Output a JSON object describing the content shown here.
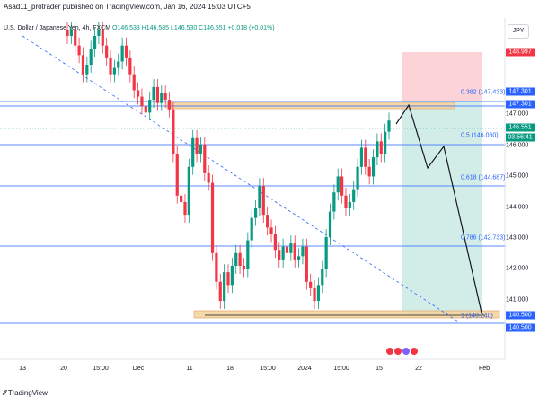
{
  "header": {
    "published": "Asad11_protrader published on TradingView.com, Jan 16, 2024 15:03 UTC+5",
    "symbol": "U.S. Dollar / Japanese Yen, 4h, FXCM",
    "ohlc": "O146.533 H146.585 L146.530 C146.551 +0.018 (+0.01%)",
    "currency": "JPY"
  },
  "price_axis": {
    "ticks": [
      "147.000",
      "146.000",
      "145.000",
      "144.000",
      "143.000",
      "142.000",
      "141.000"
    ],
    "tags": [
      {
        "label": "148.997",
        "color": "#f23645"
      },
      {
        "label": "147.301",
        "color": "#2962ff"
      },
      {
        "label": "147.301",
        "color": "#2962ff"
      },
      {
        "label": "146.551",
        "color": "#089981"
      },
      {
        "label": "03:56:41",
        "color": "#089981"
      },
      {
        "label": "140.500",
        "color": "#2962ff"
      },
      {
        "label": "140.500",
        "color": "#2962ff"
      }
    ]
  },
  "time_axis": [
    "13",
    "20",
    "15:00",
    "Dec",
    "11",
    "18",
    "15:00",
    "2024",
    "15:00",
    "15",
    "22",
    "Feb"
  ],
  "fib_levels": [
    {
      "label": "0.382 (147.433)"
    },
    {
      "label": "0.5 (146.060)"
    },
    {
      "label": "0.618 (144.687)"
    },
    {
      "label": "0.786 (142.733)"
    },
    {
      "label": "1 (140.240)"
    }
  ],
  "footer": {
    "brand": "TradingView"
  },
  "colors": {
    "up": "#089981",
    "down": "#f23645",
    "level": "#2962ff",
    "zone": "#f5d5a0"
  },
  "chart_data": {
    "type": "candlestick",
    "title": "U.S. Dollar / Japanese Yen, 4h, FXCM",
    "ylim": [
      140.2,
      149.2
    ],
    "close": [
      149.2,
      149.4,
      148.9,
      148.6,
      148.0,
      148.3,
      148.8,
      149.2,
      149.4,
      148.9,
      148.5,
      148.0,
      148.2,
      148.4,
      148.9,
      148.5,
      148.0,
      147.5,
      147.3,
      147.0,
      146.8,
      147.2,
      147.6,
      147.1,
      147.4,
      147.2,
      146.9,
      145.5,
      144.2,
      144.0,
      143.6,
      145.1,
      146.0,
      145.5,
      145.8,
      144.9,
      144.6,
      142.4,
      141.5,
      140.9,
      141.8,
      141.4,
      142.0,
      142.4,
      142.0,
      141.9,
      142.8,
      143.5,
      143.8,
      144.5,
      143.6,
      143.2,
      143.0,
      142.5,
      142.2,
      142.6,
      142.4,
      142.7,
      142.2,
      142.3,
      142.6,
      141.5,
      141.3,
      140.9,
      141.4,
      141.9,
      142.9,
      143.7,
      144.3,
      144.8,
      144.2,
      143.8,
      144.0,
      144.4,
      145.1,
      145.7,
      145.1,
      144.8,
      145.4,
      145.9,
      145.5,
      146.2,
      146.55
    ]
  }
}
